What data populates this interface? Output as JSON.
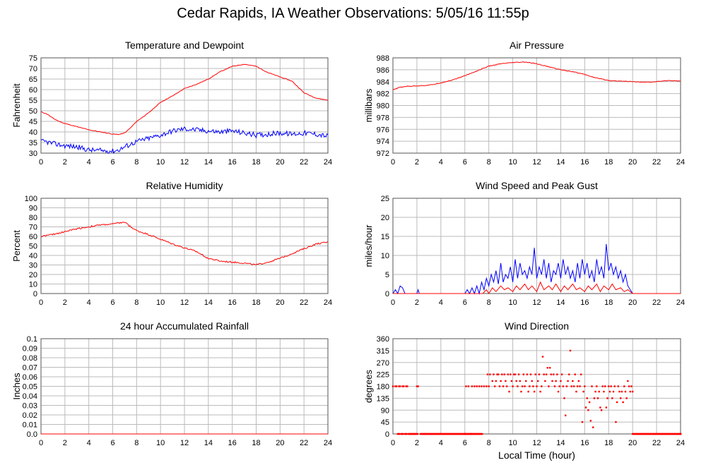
{
  "page": {
    "title": "Cedar Rapids, IA Weather Observations: 5/05/16 11:55p"
  },
  "chart_data": [
    {
      "id": "temp",
      "type": "line",
      "title": "Temperature and Dewpoint",
      "ylabel": "Fahrenheit",
      "xlabel": "",
      "xlim": [
        0,
        24
      ],
      "ylim": [
        30,
        75
      ],
      "xticks": [
        0,
        2,
        4,
        6,
        8,
        10,
        12,
        14,
        16,
        18,
        20,
        22,
        24
      ],
      "yticks": [
        30,
        35,
        40,
        45,
        50,
        55,
        60,
        65,
        70,
        75
      ],
      "grid": true,
      "series": [
        {
          "color": "#ff0000",
          "noise": 0.15,
          "x": [
            0,
            0.5,
            1,
            1.5,
            2,
            3,
            4,
            5,
            6,
            6.5,
            7,
            7.5,
            8,
            9,
            10,
            11,
            12,
            13,
            14,
            15,
            16,
            17,
            18,
            19,
            20,
            21,
            22,
            23,
            24
          ],
          "y": [
            49.5,
            48.5,
            46.5,
            45,
            44,
            42.5,
            41,
            40,
            39,
            38.8,
            39.5,
            42,
            45,
            49,
            54,
            57,
            60.5,
            62.5,
            65,
            68.5,
            71,
            72,
            71,
            68,
            66,
            64,
            58.5,
            56,
            55
          ]
        },
        {
          "color": "#0000ff",
          "noise": 1.2,
          "x": [
            0,
            0.5,
            1,
            2,
            3,
            4,
            5,
            6,
            6.5,
            7,
            8,
            9,
            10,
            11,
            12,
            13,
            14,
            15,
            16,
            17,
            18,
            19,
            20,
            21,
            22,
            23,
            24
          ],
          "y": [
            35.5,
            35.3,
            34.5,
            33.5,
            33,
            31.5,
            31.2,
            31,
            31.5,
            33,
            35.5,
            37,
            38.5,
            40.5,
            41.5,
            41,
            40.5,
            40,
            40.5,
            39.5,
            38.5,
            39,
            39.5,
            39,
            39.5,
            39,
            38
          ]
        }
      ]
    },
    {
      "id": "pressure",
      "type": "line",
      "title": "Air Pressure",
      "ylabel": "millibars",
      "xlabel": "",
      "xlim": [
        0,
        24
      ],
      "ylim": [
        972,
        988
      ],
      "xticks": [
        0,
        2,
        4,
        6,
        8,
        10,
        12,
        14,
        16,
        18,
        20,
        22,
        24
      ],
      "yticks": [
        972,
        974,
        976,
        978,
        980,
        982,
        984,
        986,
        988
      ],
      "grid": true,
      "series": [
        {
          "color": "#ff0000",
          "noise": 0.06,
          "x": [
            0,
            0.5,
            1,
            2,
            3,
            4,
            5,
            6,
            7,
            8,
            9,
            10,
            11,
            12,
            13,
            14,
            15,
            16,
            17,
            18,
            19,
            20,
            21,
            22,
            23,
            24
          ],
          "y": [
            982.6,
            983,
            983.2,
            983.3,
            983.4,
            983.8,
            984.3,
            985,
            985.8,
            986.6,
            987,
            987.2,
            987.3,
            987,
            986.5,
            986,
            985.7,
            985.2,
            984.6,
            984.2,
            984.1,
            984,
            983.9,
            984,
            984.2,
            984.1
          ]
        }
      ]
    },
    {
      "id": "humidity",
      "type": "line",
      "title": "Relative Humidity",
      "ylabel": "Percent",
      "xlabel": "",
      "xlim": [
        0,
        24
      ],
      "ylim": [
        0,
        100
      ],
      "xticks": [
        0,
        2,
        4,
        6,
        8,
        10,
        12,
        14,
        16,
        18,
        20,
        22,
        24
      ],
      "yticks": [
        0,
        10,
        20,
        30,
        40,
        50,
        60,
        70,
        80,
        90,
        100
      ],
      "grid": true,
      "series": [
        {
          "color": "#ff0000",
          "noise": 0.8,
          "x": [
            0,
            1,
            2,
            3,
            4,
            5,
            6,
            7,
            7.5,
            8,
            9,
            10,
            11,
            12,
            13,
            14,
            15,
            16,
            17,
            18,
            19,
            20,
            21,
            22,
            23,
            24
          ],
          "y": [
            60,
            62,
            65,
            68,
            70,
            72,
            73,
            75,
            70,
            66,
            62,
            57,
            52,
            48,
            44,
            37,
            34,
            33,
            32,
            30,
            33,
            37,
            42,
            47,
            52,
            54
          ]
        }
      ]
    },
    {
      "id": "wind",
      "type": "line",
      "title": "Wind Speed and Peak Gust",
      "ylabel": "miles/hour",
      "xlabel": "",
      "xlim": [
        0,
        24
      ],
      "ylim": [
        0,
        25
      ],
      "xticks": [
        0,
        2,
        4,
        6,
        8,
        10,
        12,
        14,
        16,
        18,
        20,
        22,
        24
      ],
      "yticks": [
        0,
        5,
        10,
        15,
        20,
        25
      ],
      "grid": true,
      "series": [
        {
          "color": "#0000ff",
          "noise": 0,
          "x": [
            0,
            0.2,
            0.4,
            0.6,
            0.8,
            1,
            1.1,
            2,
            2.1,
            2.2,
            2.3,
            6,
            6.2,
            6.4,
            6.6,
            6.8,
            7,
            7.2,
            7.4,
            7.6,
            7.8,
            8,
            8.2,
            8.4,
            8.6,
            8.8,
            9,
            9.2,
            9.4,
            9.6,
            9.8,
            10,
            10.2,
            10.4,
            10.6,
            10.8,
            11,
            11.2,
            11.4,
            11.6,
            11.8,
            12,
            12.2,
            12.4,
            12.6,
            12.8,
            13,
            13.2,
            13.4,
            13.6,
            13.8,
            14,
            14.2,
            14.4,
            14.6,
            14.8,
            15,
            15.2,
            15.4,
            15.6,
            15.8,
            16,
            16.2,
            16.4,
            16.6,
            16.8,
            17,
            17.2,
            17.4,
            17.6,
            17.8,
            18,
            18.2,
            18.4,
            18.6,
            18.8,
            19,
            19.2,
            19.4,
            19.6,
            19.8,
            20,
            24
          ],
          "y": [
            0,
            1,
            0,
            2,
            1.5,
            0,
            0,
            0,
            1,
            0,
            0,
            0,
            1,
            0,
            1.5,
            0,
            2,
            0,
            3,
            1,
            4,
            2,
            5,
            3,
            6,
            2.5,
            8,
            3,
            5,
            4,
            7,
            3,
            9,
            4,
            8,
            5,
            6,
            4,
            7,
            5,
            12,
            4,
            7,
            5,
            9,
            4,
            8,
            3,
            6,
            5,
            8,
            4,
            9,
            5,
            7,
            4,
            6,
            3,
            8,
            4,
            9,
            5,
            8,
            4,
            6,
            3,
            9,
            5,
            7,
            4,
            13,
            6,
            8,
            5,
            7,
            4,
            6,
            3,
            5,
            2,
            1,
            0,
            0
          ]
        },
        {
          "color": "#ff0000",
          "noise": 0,
          "x": [
            0,
            7.5,
            7.8,
            8,
            8.3,
            8.6,
            9,
            9.3,
            9.6,
            10,
            10.3,
            10.6,
            11,
            11.3,
            11.6,
            12,
            12.3,
            12.6,
            13,
            13.3,
            13.6,
            14,
            14.3,
            14.6,
            15,
            15.3,
            15.6,
            16,
            16.3,
            16.6,
            17,
            17.3,
            17.6,
            18,
            18.3,
            18.6,
            19,
            19.3,
            19.6,
            20,
            24
          ],
          "y": [
            0,
            0,
            1,
            0,
            1.5,
            0.5,
            2,
            1,
            1.5,
            0.5,
            2,
            1,
            2.5,
            1,
            2,
            0.5,
            3,
            1,
            2,
            1,
            2.5,
            0.5,
            2,
            1,
            2.5,
            1,
            1.5,
            0.5,
            2,
            1,
            2.5,
            0.5,
            2,
            1,
            2.5,
            1,
            1.5,
            0.5,
            1,
            0,
            0
          ]
        }
      ]
    },
    {
      "id": "rain",
      "type": "line",
      "title": "24 hour Accumulated Rainfall",
      "ylabel": "Inches",
      "xlabel": "",
      "xlim": [
        0,
        24
      ],
      "ylim": [
        0,
        0.1
      ],
      "xticks": [
        0,
        2,
        4,
        6,
        8,
        10,
        12,
        14,
        16,
        18,
        20,
        22,
        24
      ],
      "yticks": [
        0.0,
        0.01,
        0.02,
        0.03,
        0.04,
        0.05,
        0.06,
        0.07,
        0.08,
        0.09,
        0.1
      ],
      "ytick_labels": [
        "0.0",
        "0.01",
        "0.02",
        "0.03",
        "0.04",
        "0.05",
        "0.06",
        "0.07",
        "0.08",
        "0.09",
        "0.1"
      ],
      "grid": true,
      "series": [
        {
          "color": "#ff0000",
          "noise": 0,
          "x": [
            0,
            24
          ],
          "y": [
            0,
            0
          ]
        }
      ]
    },
    {
      "id": "direction",
      "type": "scatter",
      "title": "Wind Direction",
      "ylabel": "degrees",
      "xlabel": "Local Time (hour)",
      "xlim": [
        0,
        24
      ],
      "ylim": [
        0,
        360
      ],
      "xticks": [
        0,
        2,
        4,
        6,
        8,
        10,
        12,
        14,
        16,
        18,
        20,
        22,
        24
      ],
      "yticks": [
        0,
        45,
        90,
        135,
        180,
        225,
        270,
        315,
        360
      ],
      "grid": true,
      "series": [
        {
          "color": "#ff0000",
          "x": [
            0,
            0.2,
            0.3,
            0.5,
            0.6,
            0.8,
            0.9,
            1.1,
            1.2,
            2.0,
            2.1,
            6.1,
            6.3,
            6.6,
            6.8,
            7.0,
            7.2,
            7.4,
            7.6,
            7.8,
            7.9,
            8.0,
            8.1,
            8.3,
            8.4,
            8.5,
            8.6,
            8.7,
            8.8,
            8.9,
            9.0,
            9.1,
            9.2,
            9.3,
            9.4,
            9.5,
            9.6,
            9.7,
            9.8,
            9.9,
            10.0,
            10.1,
            10.2,
            10.3,
            10.4,
            10.5,
            10.6,
            10.7,
            10.8,
            10.9,
            11.0,
            11.1,
            11.2,
            11.3,
            11.4,
            11.5,
            11.6,
            11.7,
            11.8,
            11.9,
            12.0,
            12.1,
            12.2,
            12.3,
            12.4,
            12.5,
            12.6,
            12.7,
            12.8,
            12.9,
            13.0,
            13.1,
            13.2,
            13.3,
            13.4,
            13.5,
            13.6,
            13.7,
            13.8,
            13.9,
            14.0,
            14.1,
            14.2,
            14.3,
            14.4,
            14.5,
            14.6,
            14.7,
            14.8,
            14.9,
            15.0,
            15.1,
            15.2,
            15.3,
            15.4,
            15.5,
            15.6,
            15.7,
            15.8,
            15.9,
            16.0,
            16.1,
            16.2,
            16.3,
            16.4,
            16.5,
            16.6,
            16.7,
            16.8,
            16.9,
            17.0,
            17.1,
            17.2,
            17.3,
            17.4,
            17.5,
            17.6,
            17.7,
            17.8,
            17.9,
            18.0,
            18.1,
            18.2,
            18.3,
            18.4,
            18.5,
            18.6,
            18.7,
            18.8,
            18.9,
            19.0,
            19.1,
            19.2,
            19.3,
            19.4,
            19.5,
            19.6,
            19.7,
            19.8,
            19.9,
            20.0
          ],
          "y": [
            180,
            180,
            180,
            180,
            180,
            180,
            180,
            180,
            180,
            180,
            180,
            180,
            180,
            180,
            180,
            180,
            180,
            180,
            180,
            180,
            225,
            180,
            225,
            200,
            225,
            180,
            200,
            225,
            225,
            180,
            200,
            225,
            180,
            225,
            200,
            180,
            225,
            160,
            225,
            200,
            180,
            225,
            225,
            200,
            180,
            225,
            200,
            160,
            180,
            225,
            180,
            200,
            225,
            160,
            180,
            225,
            200,
            180,
            160,
            225,
            180,
            200,
            225,
            160,
            180,
            292,
            225,
            200,
            225,
            250,
            180,
            250,
            225,
            200,
            225,
            180,
            200,
            225,
            160,
            180,
            200,
            225,
            180,
            135,
            70,
            180,
            200,
            225,
            315,
            180,
            200,
            180,
            225,
            160,
            180,
            200,
            180,
            225,
            45,
            160,
            180,
            100,
            135,
            90,
            120,
            50,
            180,
            25,
            135,
            160,
            180,
            135,
            160,
            100,
            90,
            180,
            160,
            180,
            100,
            135,
            180,
            160,
            180,
            135,
            160,
            180,
            45,
            120,
            180,
            160,
            135,
            160,
            120,
            180,
            160,
            135,
            200,
            180,
            160,
            180,
            160
          ],
          "zx": [
            0.4,
            0.7,
            1.0,
            1.3,
            1.5,
            1.7,
            1.9,
            2.3,
            2.5,
            2.7,
            2.9,
            3.1,
            3.3,
            3.5,
            3.7,
            3.9,
            4.1,
            4.3,
            4.5,
            4.7,
            4.9,
            5.1,
            5.3,
            5.5,
            5.7,
            5.9,
            6.0,
            6.2,
            6.4,
            6.5,
            6.7,
            6.9,
            7.1,
            7.3,
            20.0,
            20.2,
            20.4,
            20.6,
            20.8,
            21.0,
            21.2,
            21.4,
            21.6,
            21.8,
            22.0,
            22.2,
            22.4,
            22.6,
            22.8,
            23.0,
            23.2,
            23.4,
            23.6,
            23.8,
            24.0
          ]
        }
      ]
    }
  ]
}
